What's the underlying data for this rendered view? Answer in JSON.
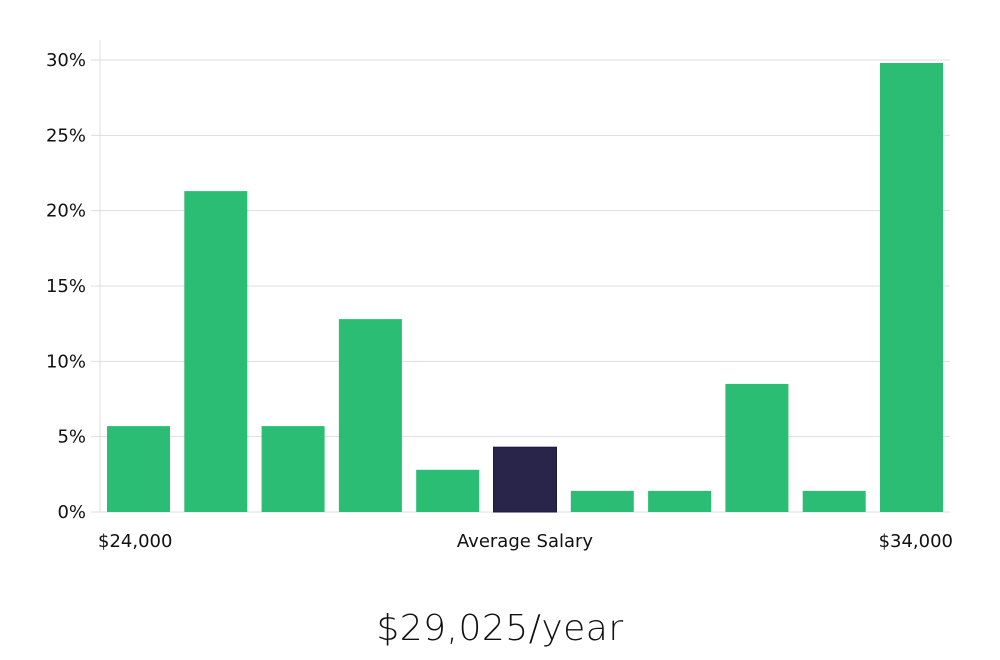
{
  "chart_data": {
    "type": "bar",
    "values": [
      5.7,
      21.3,
      5.7,
      12.8,
      2.8,
      4.3,
      1.4,
      1.4,
      8.5,
      1.4,
      29.8
    ],
    "highlight_index": 5,
    "ylim": [
      0,
      30
    ],
    "yticks": [
      "0%",
      "5%",
      "10%",
      "15%",
      "20%",
      "25%",
      "30%"
    ],
    "x_start_label": "$24,000",
    "x_mid_label": "Average Salary",
    "x_end_label": "$34,000",
    "grid": true,
    "colors": {
      "bar": "#2bbd74",
      "highlight": "#28244a",
      "grid": "#dddddd"
    }
  },
  "summary": {
    "salary_text": "$29,025/year"
  }
}
